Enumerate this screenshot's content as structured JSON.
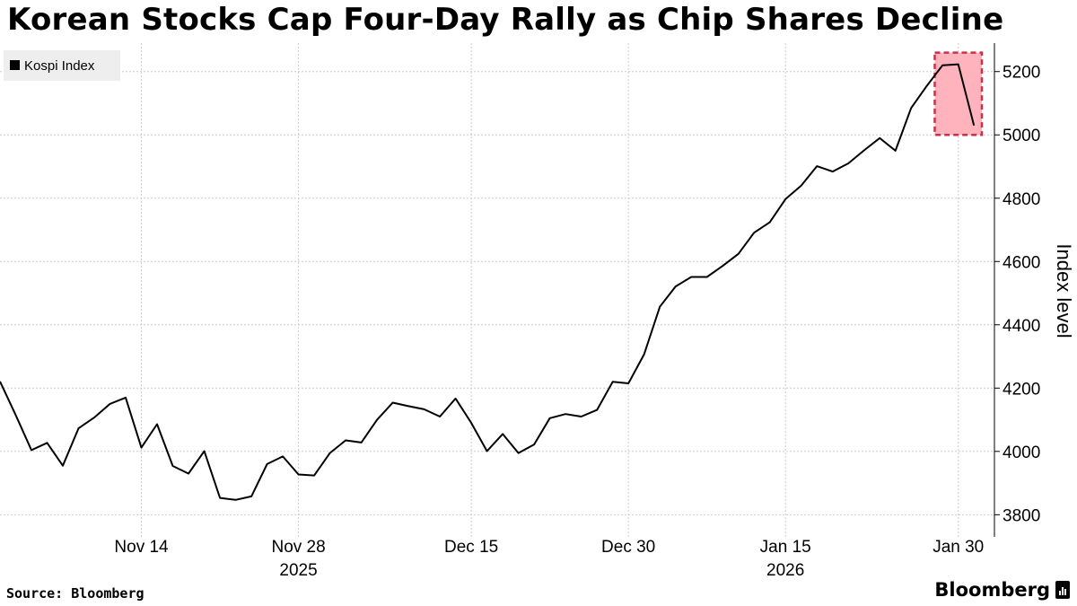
{
  "title": "Korean Stocks Cap Four-Day Rally as Chip Shares Decline",
  "footer": {
    "source": "Source: Bloomberg",
    "brand": "Bloomberg"
  },
  "colors": {
    "line": "#000000",
    "highlight_fill": "#ffb3bd",
    "highlight_border": "#c8324a",
    "grid": "#cccccc"
  },
  "chart_data": {
    "type": "line",
    "title": "Korean Stocks Cap Four-Day Rally as Chip Shares Decline",
    "legend": [
      "Kospi Index"
    ],
    "xlabel": "",
    "ylabel": "Index level",
    "ylim": [
      3730,
      5290
    ],
    "yticks": [
      3800,
      4000,
      4200,
      4400,
      4600,
      4800,
      5000,
      5200
    ],
    "xticks": [
      {
        "day": 9,
        "label": "Nov 14",
        "sublabel": ""
      },
      {
        "day": 19,
        "label": "Nov 28",
        "sublabel": "2025"
      },
      {
        "day": 30,
        "label": "Dec 15",
        "sublabel": ""
      },
      {
        "day": 40,
        "label": "Dec 30",
        "sublabel": ""
      },
      {
        "day": 50,
        "label": "Jan 15",
        "sublabel": "2026"
      },
      {
        "day": 61,
        "label": "Jan 30",
        "sublabel": ""
      }
    ],
    "xlim": [
      0,
      63.3
    ],
    "highlight": {
      "from_day": 59.5,
      "to_day": 62.5,
      "from_value": 5000,
      "to_value": 5260
    },
    "series": [
      {
        "name": "Kospi Index",
        "x": [
          0,
          1,
          2,
          3,
          4,
          5,
          6,
          7,
          8,
          9,
          10,
          11,
          12,
          13,
          14,
          15,
          16,
          17,
          18,
          19,
          20,
          21,
          22,
          23,
          24,
          25,
          26,
          27,
          28,
          29,
          30,
          31,
          32,
          33,
          34,
          35,
          36,
          37,
          38,
          39,
          40,
          41,
          42,
          43,
          44,
          45,
          46,
          47,
          48,
          49,
          50,
          51,
          52,
          53,
          54,
          55,
          56,
          57,
          58,
          59,
          60,
          61,
          62
        ],
        "values": [
          4221,
          4115,
          4004,
          4027,
          3955,
          4073,
          4107,
          4150,
          4170,
          4012,
          4086,
          3954,
          3930,
          4001,
          3853,
          3847,
          3858,
          3960,
          3984,
          3927,
          3924,
          3995,
          4035,
          4028,
          4100,
          4154,
          4143,
          4133,
          4110,
          4167,
          4090,
          4001,
          4055,
          3995,
          4022,
          4105,
          4118,
          4110,
          4131,
          4220,
          4215,
          4307,
          4457,
          4521,
          4551,
          4551,
          4586,
          4624,
          4691,
          4724,
          4797,
          4840,
          4901,
          4884,
          4910,
          4951,
          4990,
          4950,
          5085,
          5155,
          5220,
          5223,
          5030
        ]
      }
    ]
  }
}
